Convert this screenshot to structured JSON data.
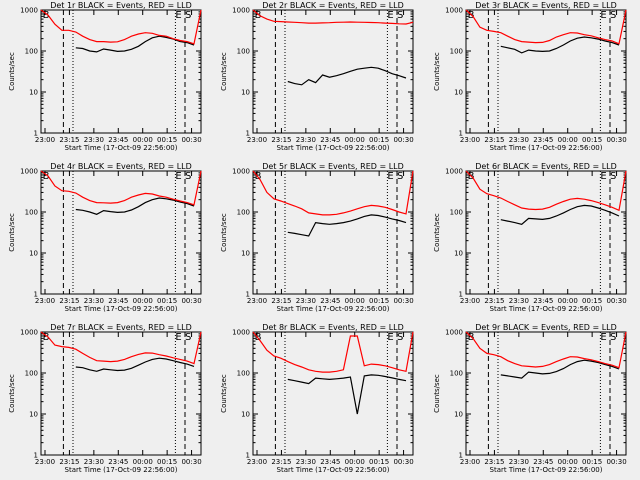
{
  "figure": {
    "background": "#efefef",
    "events_color": "#000000",
    "lld_color": "#ff0000",
    "line_color": "#000000"
  },
  "chart_data": [
    {
      "type": "line",
      "title": "Det 1r BLACK = Events, RED = LLD",
      "ylabel": "Counts/sec",
      "xlabel": "Start Time (17-Oct-09 22:56:00)",
      "x_ticks": [
        "23:00",
        "23:15",
        "23:30",
        "23:45",
        "00:00",
        "00:15",
        "00:30"
      ],
      "y_ticks": [
        "1",
        "10",
        "100",
        "1000"
      ],
      "ylim": [
        1,
        1000
      ],
      "markers": [
        "B",
        "E",
        "S"
      ],
      "series": [
        {
          "name": "Events",
          "values": [
            null,
            null,
            null,
            null,
            null,
            120,
            115,
            100,
            95,
            112,
            105,
            98,
            100,
            110,
            130,
            170,
            210,
            230,
            215,
            195,
            170,
            160,
            140,
            null
          ]
        },
        {
          "name": "LLD",
          "values": [
            1000,
            750,
            450,
            320,
            320,
            290,
            230,
            190,
            170,
            170,
            165,
            168,
            190,
            230,
            260,
            280,
            270,
            240,
            230,
            200,
            180,
            170,
            150,
            1000
          ]
        }
      ]
    },
    {
      "type": "line",
      "title": "Det 2r BLACK = Events, RED = LLD",
      "ylabel": "Counts/sec",
      "xlabel": "Start Time (17-Oct-09 22:56:00)",
      "x_ticks": [
        "23:00",
        "23:15",
        "23:30",
        "23:45",
        "00:00",
        "00:15",
        "00:30"
      ],
      "y_ticks": [
        "1",
        "10",
        "100",
        "1000"
      ],
      "ylim": [
        1,
        1000
      ],
      "markers": [
        "B",
        "E",
        "S"
      ],
      "series": [
        {
          "name": "Events",
          "values": [
            null,
            null,
            null,
            null,
            null,
            18,
            16,
            15,
            20,
            17,
            26,
            23,
            25,
            28,
            32,
            36,
            38,
            40,
            38,
            33,
            28,
            25,
            22,
            null
          ]
        },
        {
          "name": "LLD",
          "values": [
            1000,
            720,
            600,
            530,
            520,
            510,
            500,
            490,
            480,
            480,
            485,
            490,
            500,
            505,
            510,
            505,
            500,
            495,
            490,
            480,
            470,
            460,
            455,
            500
          ]
        }
      ]
    },
    {
      "type": "line",
      "title": "Det 3r BLACK = Events, RED = LLD",
      "ylabel": "Counts/sec",
      "xlabel": "Start Time (17-Oct-09 22:56:00)",
      "x_ticks": [
        "23:00",
        "23:15",
        "23:30",
        "23:45",
        "00:00",
        "00:15",
        "00:30"
      ],
      "y_ticks": [
        "1",
        "10",
        "100",
        "1000"
      ],
      "ylim": [
        1,
        1000
      ],
      "markers": [
        "B",
        "E",
        "S"
      ],
      "series": [
        {
          "name": "Events",
          "values": [
            null,
            null,
            null,
            null,
            null,
            130,
            120,
            110,
            90,
            105,
            100,
            98,
            100,
            115,
            140,
            175,
            205,
            220,
            210,
            195,
            175,
            160,
            140,
            null
          ]
        },
        {
          "name": "LLD",
          "values": [
            1000,
            700,
            380,
            320,
            300,
            280,
            230,
            190,
            170,
            165,
            160,
            162,
            180,
            220,
            250,
            280,
            275,
            250,
            235,
            210,
            190,
            175,
            150,
            1000
          ]
        }
      ]
    },
    {
      "type": "line",
      "title": "Det 4r BLACK = Events, RED = LLD",
      "ylabel": "Counts/sec",
      "xlabel": "Start Time (17-Oct-09 22:56:00)",
      "x_ticks": [
        "23:00",
        "23:15",
        "23:30",
        "23:45",
        "00:00",
        "00:15",
        "00:30"
      ],
      "y_ticks": [
        "1",
        "10",
        "100",
        "1000"
      ],
      "ylim": [
        1,
        1000
      ],
      "markers": [
        "B",
        "E",
        "S"
      ],
      "series": [
        {
          "name": "Events",
          "values": [
            null,
            null,
            null,
            null,
            null,
            115,
            110,
            100,
            88,
            108,
            102,
            98,
            100,
            112,
            135,
            170,
            200,
            220,
            210,
            195,
            175,
            160,
            140,
            null
          ]
        },
        {
          "name": "LLD",
          "values": [
            1000,
            760,
            430,
            330,
            320,
            290,
            230,
            190,
            170,
            168,
            165,
            170,
            190,
            230,
            260,
            285,
            275,
            245,
            230,
            205,
            185,
            170,
            150,
            1000
          ]
        }
      ]
    },
    {
      "type": "line",
      "title": "Det 5r BLACK = Events, RED = LLD",
      "ylabel": "Counts/sec",
      "xlabel": "Start Time (17-Oct-09 22:56:00)",
      "x_ticks": [
        "23:00",
        "23:15",
        "23:30",
        "23:45",
        "00:00",
        "00:15",
        "00:30"
      ],
      "y_ticks": [
        "1",
        "10",
        "100",
        "1000"
      ],
      "ylim": [
        1,
        1000
      ],
      "markers": [
        "B",
        "E",
        "S"
      ],
      "series": [
        {
          "name": "Events",
          "values": [
            null,
            null,
            null,
            null,
            null,
            32,
            30,
            28,
            26,
            55,
            52,
            50,
            52,
            55,
            60,
            68,
            78,
            85,
            82,
            75,
            68,
            62,
            55,
            null
          ]
        },
        {
          "name": "LLD",
          "values": [
            1000,
            620,
            300,
            210,
            185,
            160,
            140,
            120,
            95,
            90,
            85,
            85,
            88,
            95,
            105,
            120,
            135,
            145,
            140,
            130,
            115,
            100,
            90,
            1000
          ]
        }
      ]
    },
    {
      "type": "line",
      "title": "Det 6r BLACK = Events, RED = LLD",
      "ylabel": "Counts/sec",
      "xlabel": "Start Time (17-Oct-09 22:56:00)",
      "x_ticks": [
        "23:00",
        "23:15",
        "23:30",
        "23:45",
        "00:00",
        "00:15",
        "00:30"
      ],
      "y_ticks": [
        "1",
        "10",
        "100",
        "1000"
      ],
      "ylim": [
        1,
        1000
      ],
      "markers": [
        "B",
        "E",
        "S"
      ],
      "series": [
        {
          "name": "Events",
          "values": [
            null,
            null,
            null,
            null,
            null,
            65,
            60,
            55,
            50,
            70,
            68,
            66,
            70,
            80,
            95,
            115,
            135,
            145,
            140,
            125,
            110,
            95,
            80,
            null
          ]
        },
        {
          "name": "LLD",
          "values": [
            1000,
            680,
            360,
            280,
            250,
            220,
            180,
            150,
            125,
            118,
            115,
            118,
            130,
            155,
            180,
            205,
            215,
            205,
            190,
            170,
            150,
            130,
            110,
            1000
          ]
        }
      ]
    },
    {
      "type": "line",
      "title": "Det 7r BLACK = Events, RED = LLD",
      "ylabel": "Counts/sec",
      "xlabel": "Start Time (17-Oct-09 22:56:00)",
      "x_ticks": [
        "23:00",
        "23:15",
        "23:30",
        "23:45",
        "00:00",
        "00:15",
        "00:30"
      ],
      "y_ticks": [
        "1",
        "10",
        "100",
        "1000"
      ],
      "ylim": [
        1,
        1000
      ],
      "markers": [
        "B",
        "E",
        "S"
      ],
      "series": [
        {
          "name": "Events",
          "values": [
            null,
            null,
            null,
            null,
            null,
            140,
            135,
            120,
            110,
            125,
            120,
            115,
            118,
            130,
            155,
            185,
            215,
            230,
            220,
            200,
            180,
            165,
            145,
            null
          ]
        },
        {
          "name": "LLD",
          "values": [
            1000,
            760,
            480,
            440,
            420,
            380,
            300,
            240,
            200,
            195,
            190,
            195,
            215,
            250,
            285,
            310,
            305,
            280,
            260,
            235,
            215,
            195,
            170,
            1000
          ]
        }
      ]
    },
    {
      "type": "line",
      "title": "Det 8r BLACK = Events, RED = LLD",
      "ylabel": "Counts/sec",
      "xlabel": "Start Time (17-Oct-09 22:56:00)",
      "x_ticks": [
        "23:00",
        "23:15",
        "23:30",
        "23:45",
        "00:00",
        "00:15",
        "00:30"
      ],
      "y_ticks": [
        "1",
        "10",
        "100",
        "1000"
      ],
      "ylim": [
        1,
        1000
      ],
      "markers": [
        "B",
        "E",
        "S"
      ],
      "series": [
        {
          "name": "Events",
          "values": [
            null,
            null,
            null,
            null,
            null,
            70,
            65,
            60,
            55,
            75,
            72,
            70,
            72,
            75,
            80,
            10,
            85,
            90,
            88,
            82,
            76,
            70,
            65,
            null
          ]
        },
        {
          "name": "LLD",
          "values": [
            1000,
            620,
            360,
            260,
            230,
            190,
            160,
            140,
            120,
            110,
            105,
            105,
            110,
            120,
            800,
            800,
            150,
            165,
            160,
            150,
            135,
            120,
            110,
            1000
          ]
        }
      ]
    },
    {
      "type": "line",
      "title": "Det 9r BLACK = Events, RED = LLD",
      "ylabel": "Counts/sec",
      "xlabel": "Start Time (17-Oct-09 22:56:00)",
      "x_ticks": [
        "23:00",
        "23:15",
        "23:30",
        "23:45",
        "00:00",
        "00:15",
        "00:30"
      ],
      "y_ticks": [
        "1",
        "10",
        "100",
        "1000"
      ],
      "ylim": [
        1,
        1000
      ],
      "markers": [
        "B",
        "E",
        "S"
      ],
      "series": [
        {
          "name": "Events",
          "values": [
            null,
            null,
            null,
            null,
            null,
            90,
            85,
            80,
            75,
            105,
            100,
            95,
            98,
            108,
            128,
            160,
            190,
            205,
            195,
            180,
            160,
            145,
            125,
            null
          ]
        },
        {
          "name": "LLD",
          "values": [
            1000,
            700,
            400,
            300,
            280,
            250,
            200,
            170,
            150,
            145,
            140,
            145,
            160,
            190,
            220,
            250,
            245,
            225,
            210,
            190,
            170,
            155,
            135,
            1000
          ]
        }
      ]
    }
  ]
}
